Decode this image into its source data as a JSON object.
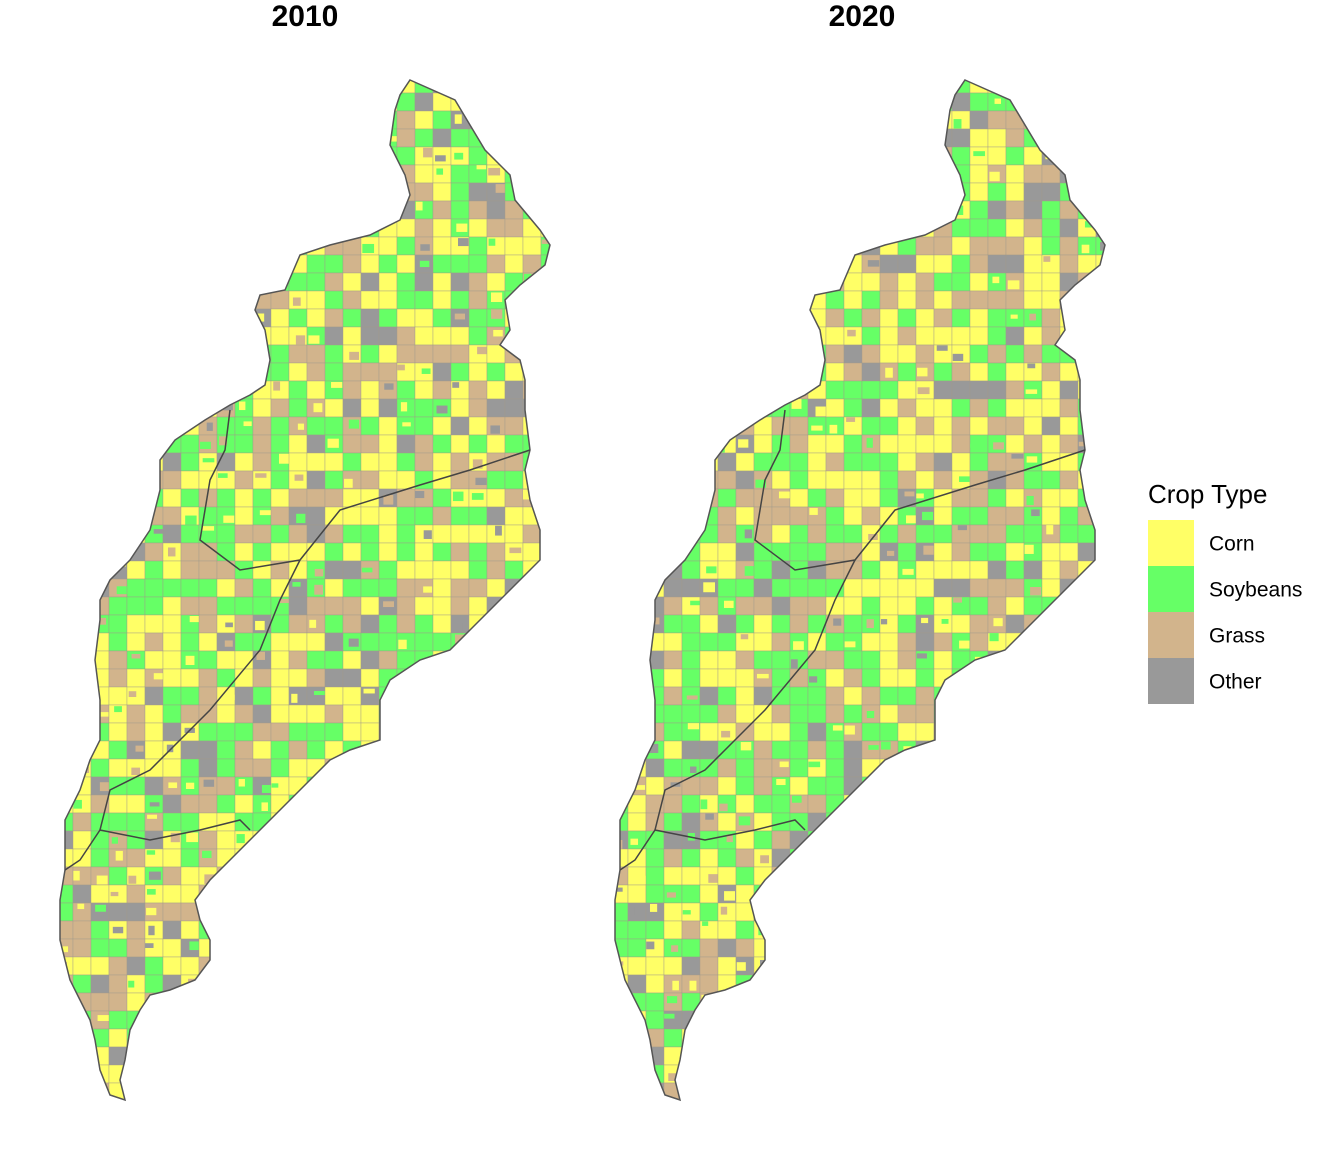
{
  "panels": [
    {
      "title": "2010"
    },
    {
      "title": "2020"
    }
  ],
  "legend": {
    "title": "Crop Type",
    "items": [
      {
        "label": "Corn",
        "color": "#ffff66"
      },
      {
        "label": "Soybeans",
        "color": "#66ff66"
      },
      {
        "label": "Grass",
        "color": "#d2b48c"
      },
      {
        "label": "Other",
        "color": "#999999"
      }
    ]
  }
}
